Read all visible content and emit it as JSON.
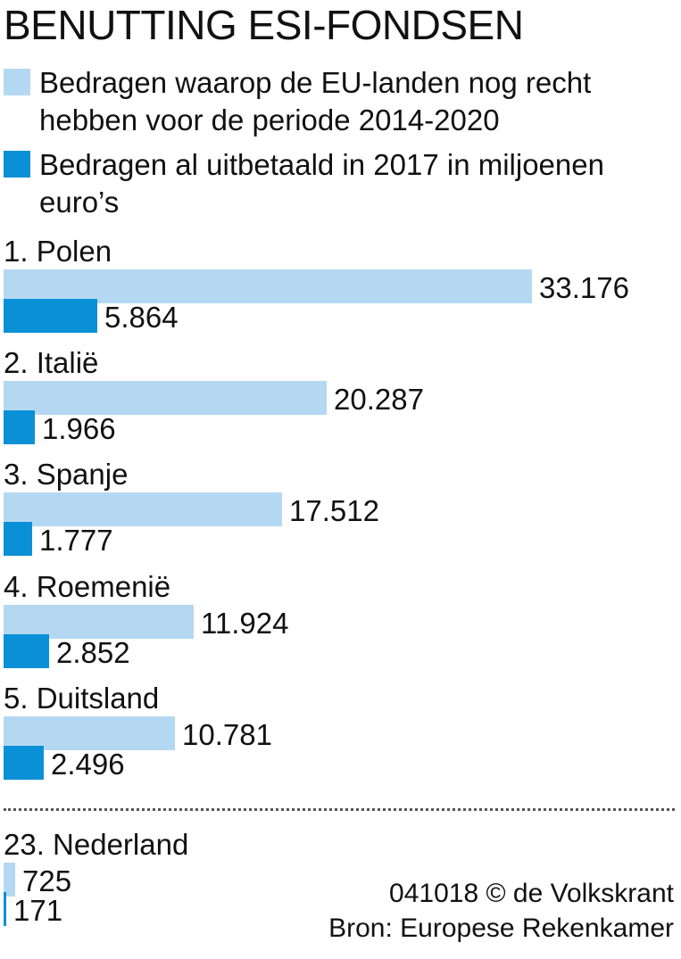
{
  "colors": {
    "available": "#b5d8f2",
    "paid": "#0a90d6"
  },
  "chart_data": {
    "type": "bar",
    "orientation": "horizontal",
    "title": "BENUTTING ESI-FONDSEN",
    "legend": [
      {
        "label": "Bedragen waarop de EU-landen nog recht hebben voor de periode 2014-2020"
      },
      {
        "label": "Bedragen al uitbetaald in 2017 in miljoenen euro’s"
      }
    ],
    "categories": [
      "1. Polen",
      "2. Italië",
      "3. Spanje",
      "4. Roemenië",
      "5. Duitsland",
      "23. Nederland"
    ],
    "series": [
      {
        "values": [
          33176,
          20287,
          17512,
          11924,
          10781,
          725
        ],
        "labels": [
          "33.176",
          "20.287",
          "17.512",
          "11.924",
          "10.781",
          "725"
        ]
      },
      {
        "values": [
          5864,
          1966,
          1777,
          2852,
          2496,
          171
        ],
        "labels": [
          "5.864",
          "1.966",
          "1.777",
          "2.852",
          "2.496",
          "171"
        ]
      }
    ]
  },
  "footer": {
    "credit": "041018 © de Volkskrant",
    "source": "Bron: Europese Rekenkamer"
  }
}
